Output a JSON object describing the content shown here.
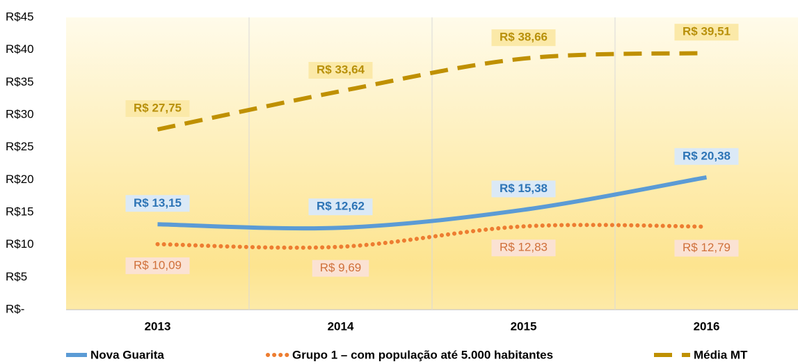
{
  "chart_data": {
    "type": "line",
    "categories": [
      "2013",
      "2014",
      "2015",
      "2016"
    ],
    "series": [
      {
        "name": "Nova Guarita",
        "color": "#5b9bd5",
        "line_style": "solid",
        "label_color": "#2e75b6",
        "label_bg": "#dbe9f6",
        "label_pos": "above",
        "values": [
          13.15,
          12.62,
          15.38,
          20.38
        ],
        "value_labels": [
          "R$ 13,15",
          "R$ 12,62",
          "R$ 15,38",
          "R$ 20,38"
        ]
      },
      {
        "name": "Grupo 1 – com população até 5.000 habitantes",
        "color": "#ed7d31",
        "line_style": "dotted",
        "label_color": "#d0703a",
        "label_bg": "#fbe2d3",
        "label_pos": "below",
        "values": [
          10.09,
          9.69,
          12.83,
          12.79
        ],
        "value_labels": [
          "R$ 10,09",
          "R$ 9,69",
          "R$ 12,83",
          "R$ 12,79"
        ]
      },
      {
        "name": "Média MT",
        "color": "#bf9000",
        "line_style": "dashed",
        "label_color": "#b8900a",
        "label_bg": "#fbe9a8",
        "label_pos": "above",
        "values": [
          27.75,
          33.64,
          38.66,
          39.51
        ],
        "value_labels": [
          "R$ 27,75",
          "R$ 33,64",
          "R$ 38,66",
          "R$ 39,51"
        ]
      }
    ],
    "ylim": [
      0,
      45
    ],
    "yticks": [
      {
        "value": 0,
        "label": "R$-"
      },
      {
        "value": 5,
        "label": "R$5"
      },
      {
        "value": 10,
        "label": "R$10"
      },
      {
        "value": 15,
        "label": "R$15"
      },
      {
        "value": 20,
        "label": "R$20"
      },
      {
        "value": 25,
        "label": "R$25"
      },
      {
        "value": 30,
        "label": "R$30"
      },
      {
        "value": 35,
        "label": "R$35"
      },
      {
        "value": 40,
        "label": "R$40"
      },
      {
        "value": 45,
        "label": "R$45"
      }
    ],
    "grid": "vertical",
    "legend": "bottom"
  }
}
